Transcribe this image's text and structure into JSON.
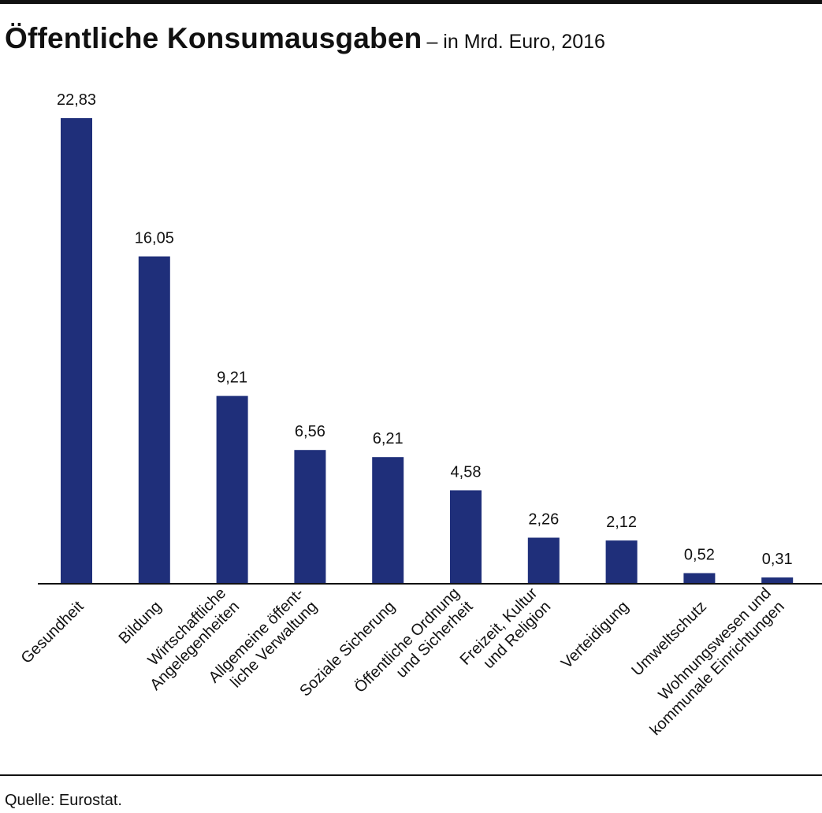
{
  "title": "Öffentliche Konsumausgaben",
  "subtitle": "– in Mrd. Euro, 2016",
  "source": "Quelle: Eurostat.",
  "chart_data": {
    "type": "bar",
    "categories": [
      [
        "Gesundheit"
      ],
      [
        "Bildung"
      ],
      [
        "Wirtschaftliche",
        "Angelegenheiten"
      ],
      [
        "Allgemeine öffent-",
        "liche Verwaltung"
      ],
      [
        "Soziale Sicherung"
      ],
      [
        "Öffentliche Ordnung",
        "und Sicherheit"
      ],
      [
        "Freizeit, Kultur",
        "und Religion"
      ],
      [
        "Verteidigung"
      ],
      [
        "Umweltschutz"
      ],
      [
        "Wohnungswesen und",
        "kommunale Einrichtungen"
      ]
    ],
    "values": [
      22.83,
      16.05,
      9.21,
      6.56,
      6.21,
      4.58,
      2.26,
      2.12,
      0.52,
      0.31
    ],
    "value_labels": [
      "22,83",
      "16,05",
      "9,21",
      "6,56",
      "6,21",
      "4,58",
      "2,26",
      "2,12",
      "0,52",
      "0,31"
    ],
    "bar_color": "#1f2f7a",
    "grid": false
  }
}
